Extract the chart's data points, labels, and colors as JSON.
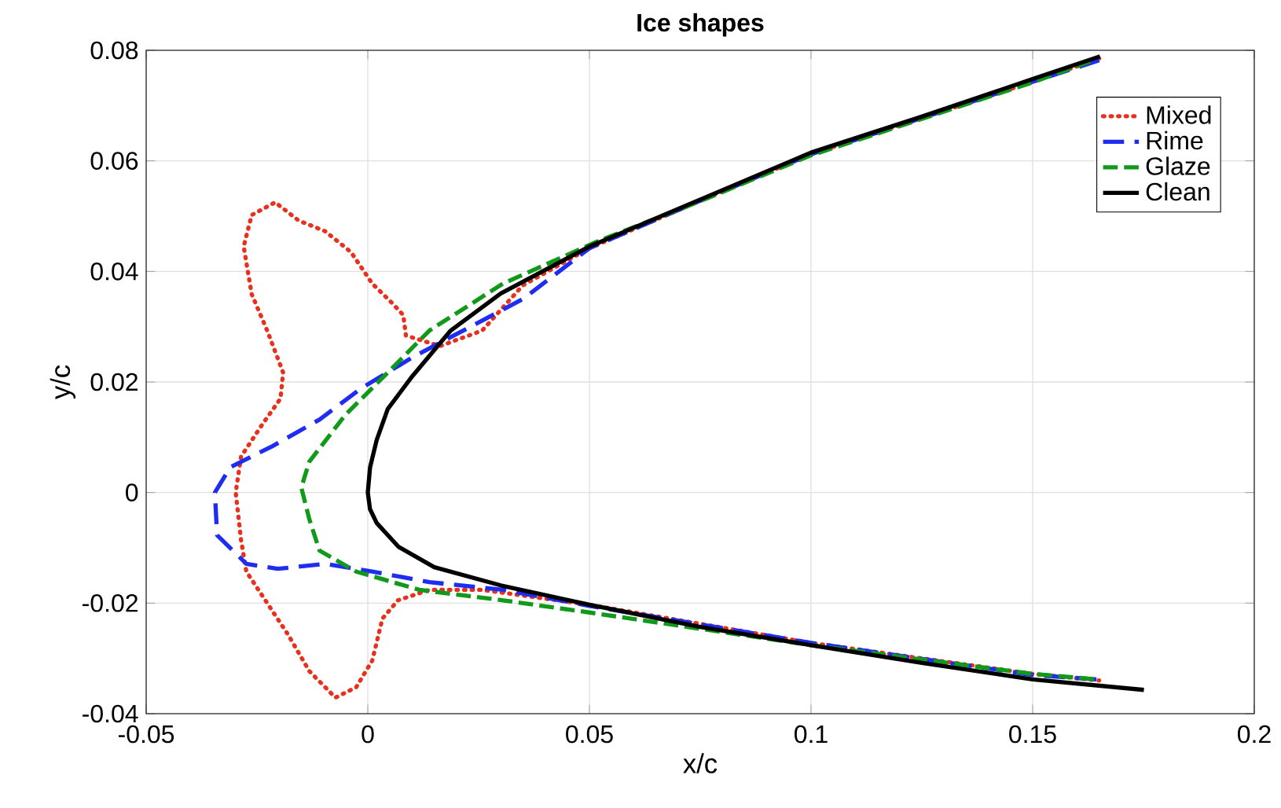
{
  "chart_data": {
    "type": "line",
    "title": "Ice shapes",
    "xlabel": "x/c",
    "ylabel": "y/c",
    "xlim": [
      -0.05,
      0.2
    ],
    "ylim": [
      -0.04,
      0.08
    ],
    "xticks": [
      -0.05,
      0,
      0.05,
      0.1,
      0.15,
      0.2
    ],
    "yticks": [
      -0.04,
      -0.02,
      0,
      0.02,
      0.04,
      0.06,
      0.08
    ],
    "grid": true,
    "legend": "top right",
    "marker": "none",
    "series": [
      {
        "name": "Mixed",
        "color": "#e8301c",
        "line_style": "dotted",
        "x": [
          0.165,
          0.15,
          0.1,
          0.075,
          0.05,
          0.035,
          0.0258,
          0.0163,
          0.0086,
          0.008,
          0.0057,
          0.001,
          -0.0038,
          -0.0097,
          -0.0156,
          -0.0209,
          -0.0262,
          -0.028,
          -0.0262,
          -0.0227,
          -0.0191,
          -0.0197,
          -0.0239,
          -0.0286,
          -0.0298,
          -0.0286,
          -0.0274,
          -0.0227,
          -0.018,
          -0.0132,
          -0.0073,
          -0.0026,
          0.001,
          0.0033,
          0.0068,
          0.0139,
          0.0258,
          0.05,
          0.1,
          0.15,
          0.165
        ],
        "values": [
          0.0785,
          0.0743,
          0.0612,
          0.0528,
          0.0442,
          0.0375,
          0.0293,
          0.0265,
          0.0284,
          0.0321,
          0.0341,
          0.0378,
          0.0435,
          0.0473,
          0.0492,
          0.0525,
          0.0502,
          0.0445,
          0.0359,
          0.0293,
          0.0217,
          0.017,
          0.0122,
          0.0065,
          0,
          -0.0086,
          -0.0143,
          -0.02,
          -0.0257,
          -0.0323,
          -0.0371,
          -0.0352,
          -0.0304,
          -0.0228,
          -0.0195,
          -0.0176,
          -0.0176,
          -0.0203,
          -0.0272,
          -0.0328,
          -0.034
        ]
      },
      {
        "name": "Rime",
        "color": "#1f2df0",
        "line_style": "dashed",
        "x": [
          0.165,
          0.15,
          0.1,
          0.075,
          0.05,
          0.035,
          0.0104,
          -0.0014,
          -0.0109,
          -0.0215,
          -0.031,
          -0.0345,
          -0.034,
          -0.0274,
          -0.0203,
          -0.0097,
          0.001,
          0.0139,
          0.0305,
          0.05,
          0.1,
          0.15,
          0.1646
        ],
        "values": [
          0.0782,
          0.0743,
          0.0612,
          0.0528,
          0.0442,
          0.035,
          0.0246,
          0.0189,
          0.0132,
          0.0084,
          0.0046,
          0,
          -0.0077,
          -0.0129,
          -0.0138,
          -0.0129,
          -0.0143,
          -0.0162,
          -0.0176,
          -0.0205,
          -0.0272,
          -0.033,
          -0.0338
        ]
      },
      {
        "name": "Glaze",
        "color": "#119a1a",
        "line_style": "dashdot",
        "x": [
          0.163,
          0.15,
          0.1,
          0.075,
          0.052,
          0.0305,
          0.0139,
          0.0045,
          -0.005,
          -0.0132,
          -0.015,
          -0.0132,
          -0.0109,
          -0.0026,
          0.0116,
          0.0305,
          0.05,
          0.1,
          0.15,
          0.1645
        ],
        "values": [
          0.078,
          0.0742,
          0.061,
          0.0527,
          0.0455,
          0.0378,
          0.0293,
          0.0217,
          0.0141,
          0.0056,
          0.0009,
          -0.0048,
          -0.0105,
          -0.0143,
          -0.0176,
          -0.0195,
          -0.0217,
          -0.0276,
          -0.0328,
          -0.0338
        ]
      },
      {
        "name": "Clean",
        "color": "#000000",
        "line_style": "solid",
        "x": [
          0.1652,
          0.15,
          0.125,
          0.1,
          0.075,
          0.05,
          0.03,
          0.0187,
          0.01,
          0.0045,
          0.002,
          0.0005,
          0,
          0.0005,
          0.002,
          0.0045,
          0.0069,
          0.015,
          0.03,
          0.05,
          0.075,
          0.1,
          0.125,
          0.15,
          0.1751
        ],
        "values": [
          0.0789,
          0.0748,
          0.068,
          0.0615,
          0.053,
          0.0445,
          0.036,
          0.0293,
          0.021,
          0.0151,
          0.0095,
          0.0045,
          0,
          -0.003,
          -0.0055,
          -0.0077,
          -0.0098,
          -0.0135,
          -0.0168,
          -0.0203,
          -0.0243,
          -0.0276,
          -0.0308,
          -0.0338,
          -0.0357
        ]
      }
    ]
  }
}
